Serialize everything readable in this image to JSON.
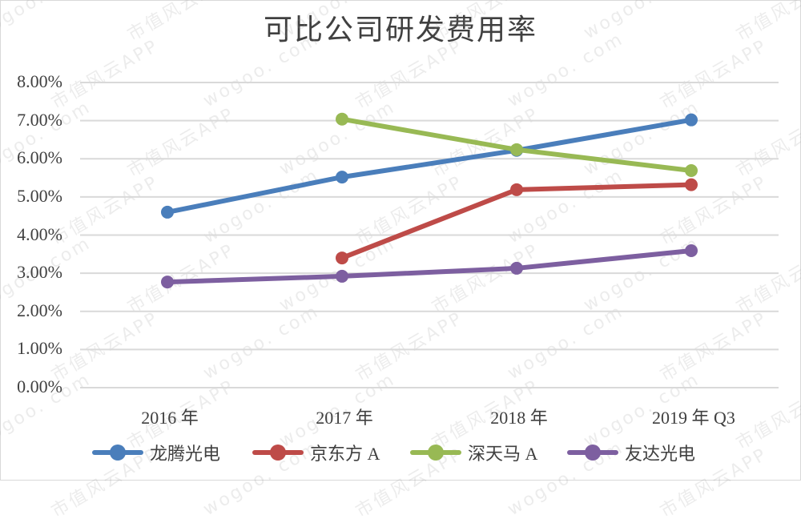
{
  "chart_data": {
    "type": "line",
    "title": "可比公司研发费用率",
    "xlabel": "",
    "ylabel": "",
    "categories": [
      "2016 年",
      "2017 年",
      "2018 年",
      "2019 年 Q3"
    ],
    "ylim": [
      0,
      8
    ],
    "yticks": [
      "0.00%",
      "1.00%",
      "2.00%",
      "3.00%",
      "4.00%",
      "5.00%",
      "6.00%",
      "7.00%",
      "8.00%"
    ],
    "grid": true,
    "legend_position": "bottom",
    "series": [
      {
        "name": "龙腾光电",
        "color": "#4a7ebb",
        "values": [
          4.6,
          5.52,
          6.22,
          7.02
        ]
      },
      {
        "name": "京东方 A",
        "color": "#be4b48",
        "values": [
          null,
          3.4,
          5.19,
          5.32
        ]
      },
      {
        "name": "深天马 A",
        "color": "#98b954",
        "values": [
          null,
          7.04,
          6.24,
          5.69
        ]
      },
      {
        "name": "友达光电",
        "color": "#7d5fa0",
        "values": [
          2.77,
          2.92,
          3.13,
          3.59
        ]
      }
    ]
  },
  "watermark": {
    "text_a": "wogoo. com",
    "text_b": "市值风云APP"
  }
}
